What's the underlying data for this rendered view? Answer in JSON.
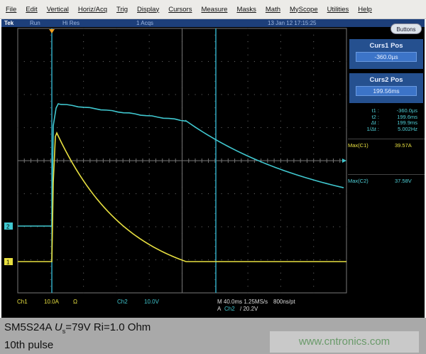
{
  "menu": [
    "File",
    "Edit",
    "Vertical",
    "Horiz/Acq",
    "Trig",
    "Display",
    "Cursors",
    "Measure",
    "Masks",
    "Math",
    "MyScope",
    "Utilities",
    "Help"
  ],
  "status": {
    "brand": "Tek",
    "state": "Run",
    "mode": "Hi Res",
    "acqs": "1 Acqs",
    "datetime": "13 Jan 12 17:15:25",
    "buttons": "Buttons"
  },
  "cursors": {
    "c1_title": "Curs1 Pos",
    "c1_value": "-360.0µs",
    "c2_title": "Curs2 Pos",
    "c2_value": "199.56ms",
    "readout": [
      {
        "k": "t1 :",
        "v": "-360.0µs"
      },
      {
        "k": "t2 :",
        "v": "199.6ms"
      },
      {
        "k": "Δt :",
        "v": "199.9ms"
      },
      {
        "k": "1/Δt :",
        "v": "5.002Hz"
      }
    ]
  },
  "measurements": [
    {
      "label": "Max(C1)",
      "value": "39.57A",
      "color": "#e8e040"
    },
    {
      "label": "Max(C2)",
      "value": "37.58V",
      "color": "#40c8d0"
    }
  ],
  "bottom": {
    "ch1": "Ch1",
    "ch1_scale": "10.0A",
    "ch1_coupling": "Ω",
    "ch2": "Ch2",
    "ch2_scale": "10.0V",
    "timebase": "M 40.0ms 1.25MS/s",
    "resolution": "800ns/pt",
    "trig_src_prefix": "A",
    "trig_src": "Ch2",
    "trig_level": "/ 20.2V"
  },
  "markers": {
    "ch1": "1",
    "ch2": "2"
  },
  "colors": {
    "ch1": "#e8e040",
    "ch2": "#40c8d0",
    "cursor": "#30a8c0"
  },
  "caption": {
    "line1_a": "SM5S24A ",
    "line1_u": "U",
    "line1_sub": "s",
    "line1_b": "=79V Ri=1.0 Ohm",
    "line2": "10th pulse"
  },
  "watermark": "www.cntronics.com"
}
